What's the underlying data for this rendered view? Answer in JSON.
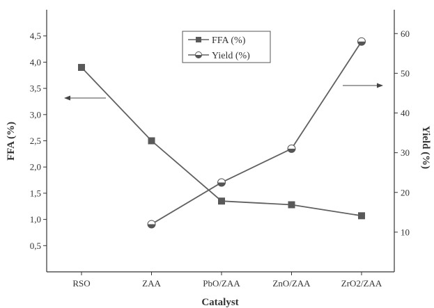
{
  "chart_data": {
    "type": "line",
    "categories": [
      "RSO",
      "ZAA",
      "PbO/ZAA",
      "ZnO/ZAA",
      "ZrO2/ZAA"
    ],
    "xlabel": "Catalyst",
    "y_left": {
      "label": "FFA (%)",
      "ticks": [
        "0,5",
        "1,0",
        "1,5",
        "2,0",
        "2,5",
        "3,0",
        "3,5",
        "4,0",
        "4,5"
      ],
      "tick_values": [
        0.5,
        1.0,
        1.5,
        2.0,
        2.5,
        3.0,
        3.5,
        4.0,
        4.5
      ],
      "ylim": [
        0.0,
        5.0
      ]
    },
    "y_right": {
      "label": "Yield (%)",
      "ticks": [
        "10",
        "20",
        "30",
        "40",
        "50",
        "60"
      ],
      "tick_values": [
        10,
        20,
        30,
        40,
        50,
        60
      ],
      "ylim": [
        0,
        66
      ]
    },
    "series": [
      {
        "name": "FFA (%)",
        "axis": "left",
        "marker": "square",
        "values": [
          3.9,
          2.5,
          1.35,
          1.28,
          1.07
        ]
      },
      {
        "name": "Yield (%)",
        "axis": "right",
        "marker": "half-circle",
        "values": [
          null,
          12,
          22.5,
          31,
          58
        ]
      }
    ],
    "legend_position": "top-center",
    "grid": false,
    "colors": {
      "line": "#606060",
      "marker": "#595959",
      "axis": "#333333"
    },
    "annotations": [
      {
        "type": "arrow",
        "direction": "left",
        "points_to": "left-axis"
      },
      {
        "type": "arrow",
        "direction": "right",
        "points_to": "right-axis"
      }
    ]
  }
}
